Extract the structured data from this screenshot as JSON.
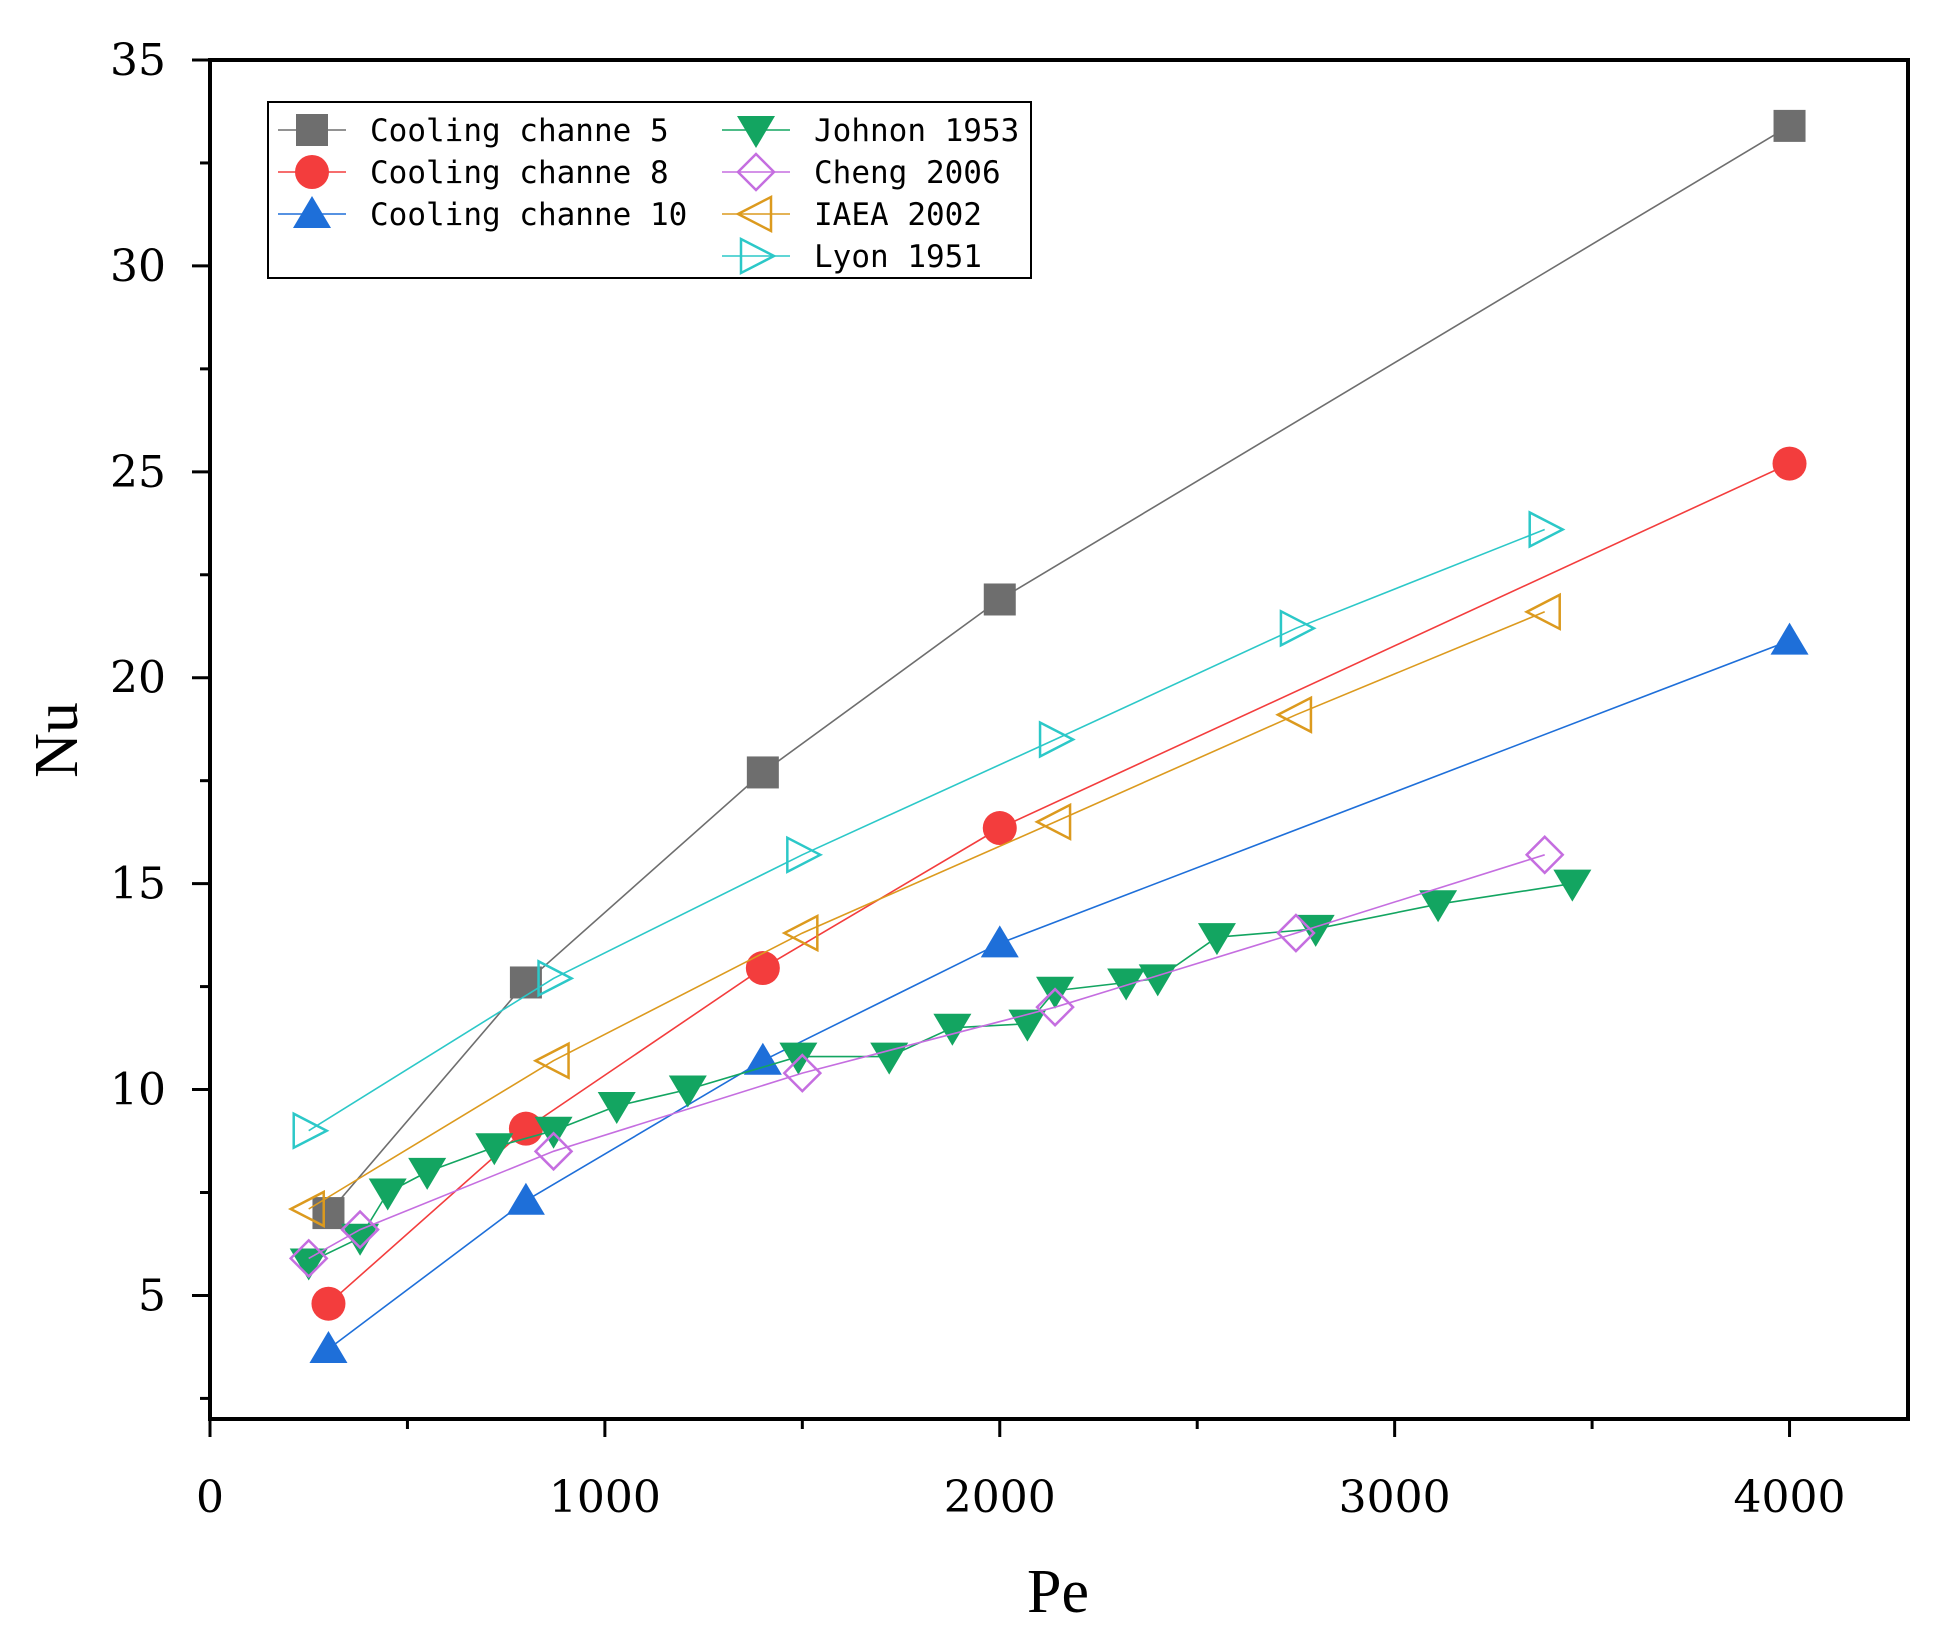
{
  "chart_data": {
    "type": "line",
    "title": "",
    "xlabel": "Pe",
    "ylabel": "Nu",
    "xlim": [
      0,
      4300
    ],
    "ylim": [
      2,
      35
    ],
    "xticks": [
      0,
      1000,
      2000,
      3000,
      4000
    ],
    "xtick_labels": [
      "0",
      "1000",
      "2000",
      "3000",
      "4000"
    ],
    "yticks": [
      5,
      10,
      15,
      20,
      25,
      30,
      35
    ],
    "ytick_labels": [
      "5",
      "10",
      "15",
      "20",
      "25",
      "30",
      "35"
    ],
    "grid": false,
    "legend_position": "top-left",
    "series": [
      {
        "name": "Cooling channe 5",
        "color": "#6e6e6e",
        "marker": "square",
        "x": [
          300,
          800,
          1400,
          2000,
          4000
        ],
        "y": [
          7.0,
          12.6,
          17.7,
          21.9,
          33.4
        ]
      },
      {
        "name": "Cooling channe 8",
        "color": "#f33d3d",
        "marker": "circle",
        "x": [
          300,
          800,
          1400,
          2000,
          4000
        ],
        "y": [
          4.8,
          9.05,
          12.95,
          16.35,
          25.2
        ]
      },
      {
        "name": "Cooling channe 10",
        "color": "#1e6fd9",
        "marker": "triangle-up",
        "x": [
          300,
          800,
          1400,
          2000,
          4000
        ],
        "y": [
          3.7,
          7.3,
          10.7,
          13.55,
          20.9
        ]
      },
      {
        "name": "Johnon 1953",
        "color": "#13a561",
        "marker": "triangle-down",
        "x": [
          250,
          380,
          450,
          550,
          720,
          870,
          1030,
          1210,
          1490,
          1720,
          1880,
          2070,
          2140,
          2320,
          2400,
          2550,
          2800,
          3110,
          3450
        ],
        "y": [
          5.8,
          6.4,
          7.5,
          8.0,
          8.6,
          9.0,
          9.6,
          10.0,
          10.8,
          10.8,
          11.5,
          11.6,
          12.4,
          12.6,
          12.7,
          13.7,
          13.9,
          14.5,
          15.0
        ]
      },
      {
        "name": "Cheng 2006",
        "color": "#c56ee0",
        "marker": "diamond-open",
        "x": [
          250,
          380,
          870,
          1500,
          2140,
          2750,
          3380
        ],
        "y": [
          5.9,
          6.6,
          8.5,
          10.4,
          12.0,
          13.8,
          15.7
        ]
      },
      {
        "name": "IAEA 2002",
        "color": "#dc9a1e",
        "marker": "triangle-left-open",
        "x": [
          250,
          870,
          1500,
          2140,
          2750,
          3380
        ],
        "y": [
          7.1,
          10.7,
          13.8,
          16.5,
          19.1,
          21.6
        ]
      },
      {
        "name": "Lyon 1951",
        "color": "#2cc8c8",
        "marker": "triangle-right-open",
        "x": [
          250,
          870,
          1500,
          2140,
          2750,
          3380
        ],
        "y": [
          9.0,
          12.7,
          15.7,
          18.5,
          21.2,
          23.6
        ]
      }
    ]
  }
}
